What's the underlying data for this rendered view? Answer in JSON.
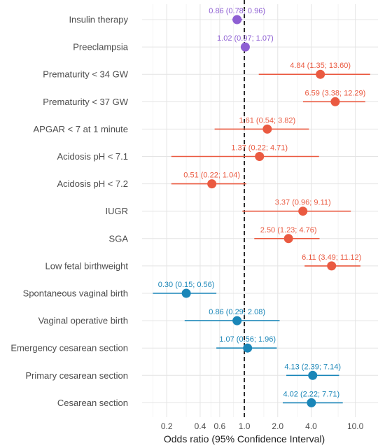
{
  "chart_data": {
    "type": "forest",
    "xlabel": "Odds ratio (95% Confidence Interval)",
    "x_scale": "log",
    "xlim": [
      0.12,
      16
    ],
    "x_ticks": [
      {
        "value": 0.2,
        "label": "0.2"
      },
      {
        "value": 0.4,
        "label": "0.4"
      },
      {
        "value": 0.6,
        "label": "0.6"
      },
      {
        "value": 1.0,
        "label": "1.0"
      },
      {
        "value": 2.0,
        "label": "2.0"
      },
      {
        "value": 4.0,
        "label": "4.0"
      },
      {
        "value": 10.0,
        "label": "10.0"
      }
    ],
    "x_minor_grid": [
      0.15,
      0.3,
      0.5,
      0.8,
      1.5,
      3.0,
      7.0
    ],
    "reference_line": 1.0,
    "grid": true,
    "colors": {
      "group1": "#8e5fd3",
      "group2": "#ea5a41",
      "group3": "#1a86b8"
    },
    "rows": [
      {
        "label": "Insulin therapy",
        "or": 0.86,
        "lo": 0.78,
        "hi": 0.96,
        "text": "0.86 (0.78; 0.96)",
        "group": "group1"
      },
      {
        "label": "Preeclampsia",
        "or": 1.02,
        "lo": 0.97,
        "hi": 1.07,
        "text": "1.02 (0.97; 1.07)",
        "group": "group1"
      },
      {
        "label": "Prematurity < 34 GW",
        "or": 4.84,
        "lo": 1.35,
        "hi": 13.6,
        "text": "4.84 (1.35; 13.60)",
        "group": "group2"
      },
      {
        "label": "Prematurity < 37 GW",
        "or": 6.59,
        "lo": 3.38,
        "hi": 12.29,
        "text": "6.59 (3.38; 12.29)",
        "group": "group2"
      },
      {
        "label": "APGAR < 7 at 1 minute",
        "or": 1.61,
        "lo": 0.54,
        "hi": 3.82,
        "text": "1.61 (0.54; 3.82)",
        "group": "group2"
      },
      {
        "label": "Acidosis pH < 7.1",
        "or": 1.37,
        "lo": 0.22,
        "hi": 4.71,
        "text": "1.37 (0.22; 4.71)",
        "group": "group2"
      },
      {
        "label": "Acidosis pH < 7.2",
        "or": 0.51,
        "lo": 0.22,
        "hi": 1.04,
        "text": "0.51 (0.22; 1.04)",
        "group": "group2"
      },
      {
        "label": "IUGR",
        "or": 3.37,
        "lo": 0.96,
        "hi": 9.11,
        "text": "3.37 (0.96; 9.11)",
        "group": "group2"
      },
      {
        "label": "SGA",
        "or": 2.5,
        "lo": 1.23,
        "hi": 4.76,
        "text": "2.50 (1.23; 4.76)",
        "group": "group2"
      },
      {
        "label": "Low fetal birthweight",
        "or": 6.11,
        "lo": 3.49,
        "hi": 11.12,
        "text": "6.11 (3.49; 11.12)",
        "group": "group2"
      },
      {
        "label": "Spontaneous vaginal birth",
        "or": 0.3,
        "lo": 0.15,
        "hi": 0.56,
        "text": "0.30 (0.15; 0.56)",
        "group": "group3"
      },
      {
        "label": "Vaginal operative birth",
        "or": 0.86,
        "lo": 0.29,
        "hi": 2.08,
        "text": "0.86 (0.29; 2.08)",
        "group": "group3"
      },
      {
        "label": "Emergency cesarean section",
        "or": 1.07,
        "lo": 0.56,
        "hi": 1.96,
        "text": "1.07 (0.56; 1.96)",
        "group": "group3"
      },
      {
        "label": "Primary cesarean section",
        "or": 4.13,
        "lo": 2.39,
        "hi": 7.14,
        "text": "4.13 (2.39; 7.14)",
        "group": "group3"
      },
      {
        "label": "Cesarean section",
        "or": 4.02,
        "lo": 2.22,
        "hi": 7.71,
        "text": "4.02 (2.22; 7.71)",
        "group": "group3"
      }
    ]
  }
}
